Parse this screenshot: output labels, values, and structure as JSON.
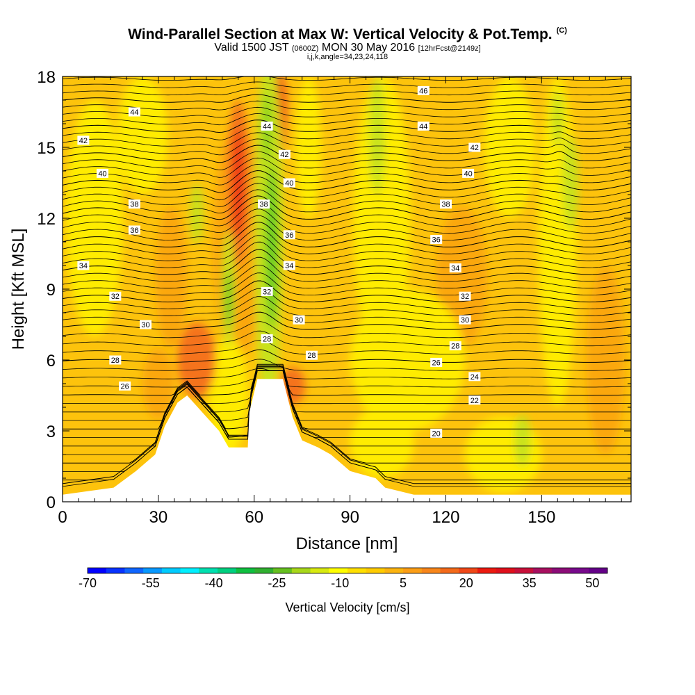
{
  "title": {
    "main": "Wind-Parallel Section at Max W: Vertical Velocity & Pot.Temp.",
    "copyright": "(C)",
    "valid_prefix": "Valid 1500 JST",
    "valid_z": "(0600Z)",
    "valid_date": "MON 30 May 2016",
    "valid_fcst": "[12hrFcst@2149z]",
    "params": "i,j,k,angle=34,23,24,118"
  },
  "colors": {
    "background_fill": "#fdc30c",
    "yellow": "#ffec00",
    "pale_yellow": "#fbf31e",
    "orange": "#fba70c",
    "deep_orange": "#f5731e",
    "red": "#ef3817",
    "yellow_green": "#c8e21a",
    "green": "#66cc22",
    "terrain": "#ffffff"
  },
  "chart_data": {
    "type": "heatmap",
    "xlabel": "Distance [nm]",
    "ylabel": "Height [Kft MSL]",
    "xlim": [
      0,
      178
    ],
    "ylim": [
      0,
      18
    ],
    "x_ticks": [
      0,
      30,
      60,
      90,
      120,
      150
    ],
    "y_ticks": [
      0,
      3,
      6,
      9,
      12,
      15,
      18
    ],
    "colorbar": {
      "label": "Vertical Velocity [cm/s]",
      "tick_labels": [
        "-70",
        "-55",
        "-40",
        "-25",
        "-10",
        "5",
        "20",
        "35",
        "50"
      ],
      "colors": [
        "#0000ff",
        "#0833ff",
        "#0f66ff",
        "#0899ff",
        "#00ccff",
        "#00f0ff",
        "#00e0b0",
        "#00d080",
        "#10c040",
        "#30b030",
        "#66c020",
        "#a8d81a",
        "#d8ea10",
        "#ffff00",
        "#ffe000",
        "#ffcc00",
        "#fcb410",
        "#fc9e16",
        "#f8861a",
        "#f46a1a",
        "#f04818",
        "#ec1a10",
        "#e0101c",
        "#c8103a",
        "#a81060",
        "#8c0c78",
        "#780a8c",
        "#640088"
      ]
    },
    "isentropes": {
      "levels": [
        20,
        22,
        24,
        26,
        28,
        30,
        32,
        34,
        36,
        38,
        40,
        42,
        44,
        46
      ],
      "line_color": "#000000",
      "labels": [
        {
          "text": "46",
          "x": 113,
          "y": 17.4
        },
        {
          "text": "44",
          "x": 22.5,
          "y": 16.5
        },
        {
          "text": "44",
          "x": 64,
          "y": 15.9
        },
        {
          "text": "44",
          "x": 113,
          "y": 15.9
        },
        {
          "text": "42",
          "x": 6.5,
          "y": 15.3
        },
        {
          "text": "42",
          "x": 69.5,
          "y": 14.7
        },
        {
          "text": "42",
          "x": 129,
          "y": 15.0
        },
        {
          "text": "40",
          "x": 12.5,
          "y": 13.9
        },
        {
          "text": "40",
          "x": 71,
          "y": 13.5
        },
        {
          "text": "40",
          "x": 127,
          "y": 13.9
        },
        {
          "text": "38",
          "x": 22.5,
          "y": 12.6
        },
        {
          "text": "38",
          "x": 63,
          "y": 12.6
        },
        {
          "text": "38",
          "x": 120,
          "y": 12.6
        },
        {
          "text": "36",
          "x": 22.5,
          "y": 11.5
        },
        {
          "text": "36",
          "x": 71,
          "y": 11.3
        },
        {
          "text": "36",
          "x": 117,
          "y": 11.1
        },
        {
          "text": "34",
          "x": 6.5,
          "y": 10.0
        },
        {
          "text": "34",
          "x": 71,
          "y": 10.0
        },
        {
          "text": "34",
          "x": 123,
          "y": 9.9
        },
        {
          "text": "32",
          "x": 16.5,
          "y": 8.7
        },
        {
          "text": "32",
          "x": 64,
          "y": 8.9
        },
        {
          "text": "32",
          "x": 126,
          "y": 8.7
        },
        {
          "text": "30",
          "x": 26,
          "y": 7.5
        },
        {
          "text": "30",
          "x": 74,
          "y": 7.7
        },
        {
          "text": "30",
          "x": 126,
          "y": 7.7
        },
        {
          "text": "28",
          "x": 64,
          "y": 6.9
        },
        {
          "text": "28",
          "x": 16.5,
          "y": 6.0
        },
        {
          "text": "28",
          "x": 78,
          "y": 6.2
        },
        {
          "text": "28",
          "x": 123,
          "y": 6.6
        },
        {
          "text": "26",
          "x": 117,
          "y": 5.9
        },
        {
          "text": "26",
          "x": 19.5,
          "y": 4.9
        },
        {
          "text": "24",
          "x": 129,
          "y": 5.3
        },
        {
          "text": "22",
          "x": 129,
          "y": 4.3
        },
        {
          "text": "20",
          "x": 117,
          "y": 2.9
        }
      ]
    },
    "terrain_height": [
      {
        "x": 0,
        "h": 0.3
      },
      {
        "x": 16,
        "h": 0.6
      },
      {
        "x": 23,
        "h": 1.3
      },
      {
        "x": 29,
        "h": 2.0
      },
      {
        "x": 32,
        "h": 3.2
      },
      {
        "x": 36,
        "h": 4.2
      },
      {
        "x": 39,
        "h": 4.5
      },
      {
        "x": 45,
        "h": 3.6
      },
      {
        "x": 49,
        "h": 3.0
      },
      {
        "x": 52,
        "h": 2.3
      },
      {
        "x": 58,
        "h": 2.3
      },
      {
        "x": 58.5,
        "h": 3.8
      },
      {
        "x": 61,
        "h": 5.2
      },
      {
        "x": 69,
        "h": 5.2
      },
      {
        "x": 72,
        "h": 3.6
      },
      {
        "x": 75,
        "h": 2.6
      },
      {
        "x": 80,
        "h": 2.3
      },
      {
        "x": 84,
        "h": 2.0
      },
      {
        "x": 90,
        "h": 1.3
      },
      {
        "x": 98,
        "h": 1.0
      },
      {
        "x": 101,
        "h": 0.6
      },
      {
        "x": 110,
        "h": 0.3
      },
      {
        "x": 113,
        "h": 0.3
      },
      {
        "x": 178,
        "h": 0.3
      }
    ],
    "shading_features": [
      {
        "level": "orange",
        "cx": 55,
        "cy": 11,
        "rx": 8,
        "ry": 5
      },
      {
        "level": "orange",
        "cx": 34,
        "cy": 9.5,
        "rx": 5,
        "ry": 3
      },
      {
        "level": "orange",
        "cx": 125,
        "cy": 9.5,
        "rx": 8,
        "ry": 3
      },
      {
        "level": "orange",
        "cx": 170,
        "cy": 6,
        "rx": 6,
        "ry": 4
      },
      {
        "level": "orange",
        "cx": 30,
        "cy": 5,
        "rx": 5,
        "ry": 1.5
      },
      {
        "level": "yellow",
        "cx": 100,
        "cy": 12,
        "rx": 9,
        "ry": 6
      },
      {
        "level": "yellow",
        "cx": 108,
        "cy": 6,
        "rx": 18,
        "ry": 3
      },
      {
        "level": "yellow",
        "cx": 155,
        "cy": 11,
        "rx": 6,
        "ry": 7
      },
      {
        "level": "yellow",
        "cx": 138,
        "cy": 2,
        "rx": 12,
        "ry": 1.6
      },
      {
        "level": "yellow",
        "cx": 100,
        "cy": 2.5,
        "rx": 10,
        "ry": 1.5
      },
      {
        "level": "yellow",
        "cx": 10,
        "cy": 12,
        "rx": 9,
        "ry": 5
      },
      {
        "level": "yellow",
        "cx": 52,
        "cy": 4.5,
        "rx": 6,
        "ry": 2.5
      },
      {
        "level": "yellow",
        "cx": 140,
        "cy": 15,
        "rx": 8,
        "ry": 3
      },
      {
        "level": "yellow",
        "cx": 77,
        "cy": 15,
        "rx": 4,
        "ry": 3
      },
      {
        "level": "yellow",
        "cx": 25,
        "cy": 15.5,
        "rx": 8,
        "ry": 2.5
      },
      {
        "level": "deep_orange",
        "cx": 55,
        "cy": 13.5,
        "rx": 3.5,
        "ry": 3.5
      },
      {
        "level": "deep_orange",
        "cx": 42,
        "cy": 6,
        "rx": 6,
        "ry": 1.6
      },
      {
        "level": "deep_orange",
        "cx": 72,
        "cy": 4.9,
        "rx": 4,
        "ry": 0.8
      },
      {
        "level": "deep_orange",
        "cx": 68,
        "cy": 16.5,
        "rx": 2.5,
        "ry": 1.8
      },
      {
        "level": "red",
        "cx": 55,
        "cy": 13.5,
        "rx": 1.8,
        "ry": 2.3
      },
      {
        "level": "red",
        "cx": 68,
        "cy": 16.8,
        "rx": 1.2,
        "ry": 1.0
      },
      {
        "level": "yellow_green",
        "cx": 64.5,
        "cy": 11.5,
        "rx": 4.5,
        "ry": 7.5
      },
      {
        "level": "yellow_green",
        "cx": 98.5,
        "cy": 15.5,
        "rx": 2.5,
        "ry": 2.5
      },
      {
        "level": "yellow_green",
        "cx": 159,
        "cy": 13.5,
        "rx": 2.5,
        "ry": 2.0
      },
      {
        "level": "yellow_green",
        "cx": 155,
        "cy": 16.2,
        "rx": 1.8,
        "ry": 1.2
      },
      {
        "level": "yellow_green",
        "cx": 42,
        "cy": 12.2,
        "rx": 2.0,
        "ry": 1.3
      },
      {
        "level": "yellow_green",
        "cx": 52,
        "cy": 9,
        "rx": 2.0,
        "ry": 2.5
      },
      {
        "level": "yellow_green",
        "cx": 144,
        "cy": 2.6,
        "rx": 2.5,
        "ry": 1.1
      },
      {
        "level": "green",
        "cx": 65.5,
        "cy": 10.8,
        "rx": 2.0,
        "ry": 3.5
      },
      {
        "level": "green",
        "cx": 64,
        "cy": 15.8,
        "rx": 1.0,
        "ry": 1.5
      },
      {
        "level": "green",
        "cx": 52,
        "cy": 8.6,
        "rx": 1.2,
        "ry": 1.2
      }
    ]
  }
}
